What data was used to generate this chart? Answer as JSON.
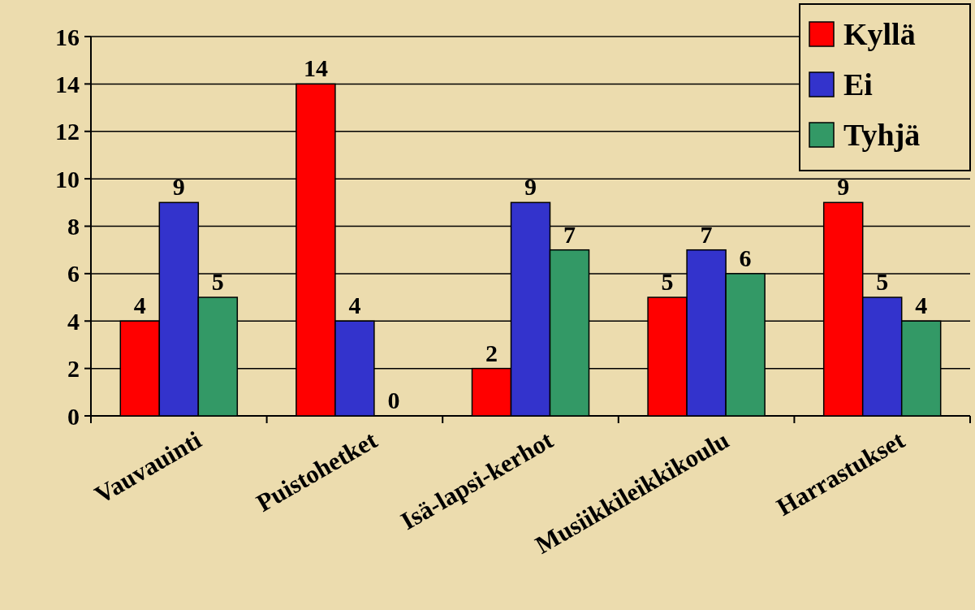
{
  "chart_data": {
    "type": "bar",
    "categories": [
      "Vauvauinti",
      "Puistohetket",
      "Isä-lapsi-kerhot",
      "Musiikkileikkikoulu",
      "Harrastukset"
    ],
    "series": [
      {
        "name": "Kyllä",
        "color": "#ff0000",
        "values": [
          4,
          14,
          2,
          5,
          9
        ]
      },
      {
        "name": "Ei",
        "color": "#3333cc",
        "values": [
          9,
          4,
          9,
          7,
          5
        ]
      },
      {
        "name": "Tyhjä",
        "color": "#339966",
        "values": [
          5,
          0,
          7,
          6,
          4
        ]
      }
    ],
    "ylim": [
      0,
      16
    ],
    "yticks": [
      0,
      2,
      4,
      6,
      8,
      10,
      12,
      14,
      16
    ],
    "grid": "y",
    "legend": "top right",
    "data_labels": true
  }
}
